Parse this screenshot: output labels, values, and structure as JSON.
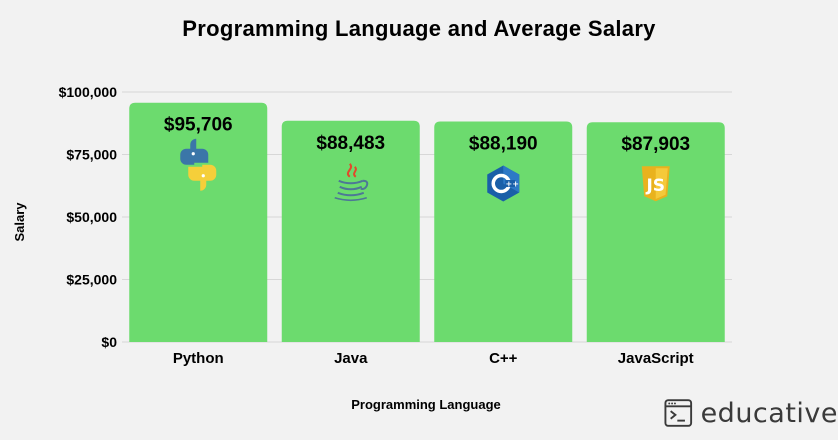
{
  "chart_data": {
    "type": "bar",
    "title": "Programming Language and Average Salary",
    "xlabel": "Programming Language",
    "ylabel": "Salary",
    "categories": [
      "Python",
      "Java",
      "C++",
      "JavaScript"
    ],
    "values": [
      95706,
      88483,
      88190,
      87903
    ],
    "value_labels": [
      "$95,706",
      "$88,483",
      "$88,190",
      "$87,903"
    ],
    "icons": [
      "python-logo",
      "java-logo",
      "cplusplus-logo",
      "javascript-logo"
    ],
    "ylim": [
      0,
      100000
    ],
    "yticks": [
      0,
      25000,
      50000,
      75000,
      100000
    ],
    "ytick_labels": [
      "$0",
      "$25,000",
      "$50,000",
      "$75,000",
      "$100,000"
    ],
    "grid": true,
    "bar_color": "#6cdb6e"
  },
  "brand": {
    "name": "educative",
    "icon": "terminal-window-icon"
  }
}
